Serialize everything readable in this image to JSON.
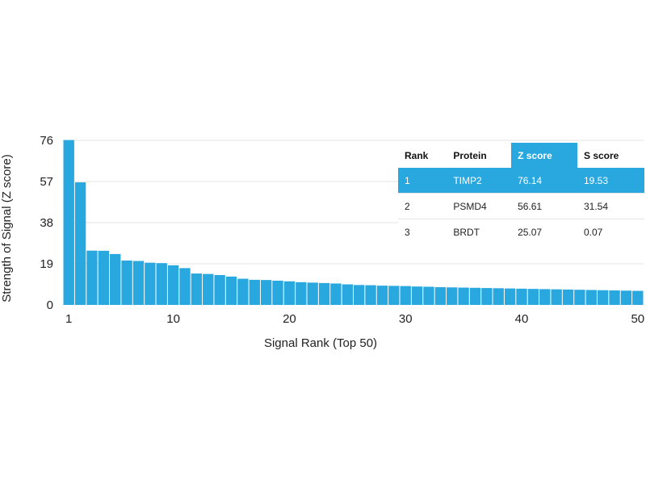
{
  "chart_data": {
    "type": "bar",
    "xlabel": "Signal Rank (Top 50)",
    "ylabel": "Strength of Signal (Z score)",
    "ylim": [
      0,
      76
    ],
    "yticks": [
      0,
      19,
      38,
      57,
      76
    ],
    "xticks": [
      1,
      10,
      20,
      30,
      40,
      50
    ],
    "grid": true,
    "bar_color": "#29a8e0",
    "x": [
      1,
      2,
      3,
      4,
      5,
      6,
      7,
      8,
      9,
      10,
      11,
      12,
      13,
      14,
      15,
      16,
      17,
      18,
      19,
      20,
      21,
      22,
      23,
      24,
      25,
      26,
      27,
      28,
      29,
      30,
      31,
      32,
      33,
      34,
      35,
      36,
      37,
      38,
      39,
      40,
      41,
      42,
      43,
      44,
      45,
      46,
      47,
      48,
      49,
      50
    ],
    "values": [
      76.14,
      56.61,
      25.07,
      25,
      23.5,
      20.5,
      20.3,
      19.5,
      19.3,
      18.3,
      17,
      14.5,
      14.3,
      13.8,
      13.1,
      12.1,
      11.6,
      11.5,
      11.2,
      10.9,
      10.5,
      10.3,
      10.1,
      9.9,
      9.5,
      9.2,
      9.1,
      8.9,
      8.8,
      8.7,
      8.5,
      8.4,
      8.2,
      8.1,
      8,
      7.9,
      7.8,
      7.7,
      7.6,
      7.5,
      7.4,
      7.3,
      7.2,
      7.1,
      7,
      6.9,
      6.8,
      6.7,
      6.6,
      6.5
    ]
  },
  "table": {
    "headers": [
      "Rank",
      "Protein",
      "Z score",
      "S score"
    ],
    "highlight_color": "#29a8e0",
    "rows": [
      [
        "1",
        "TIMP2",
        "76.14",
        "19.53"
      ],
      [
        "2",
        "PSMD4",
        "56.61",
        "31.54"
      ],
      [
        "3",
        "BRDT",
        "25.07",
        "0.07"
      ]
    ]
  }
}
